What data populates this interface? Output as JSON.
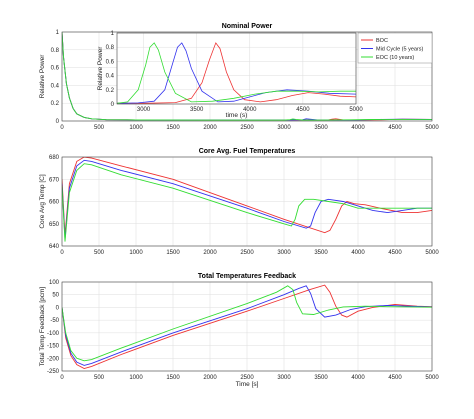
{
  "colors": {
    "BOC": "#ee3333",
    "MID": "#3333ee",
    "EOC": "#33dd33",
    "grid": "#dddddd",
    "axis": "#444444"
  },
  "chart_data": [
    {
      "type": "line",
      "title": "Nominal Power",
      "ylabel": "Relative Power",
      "xlabel": "",
      "xlim": [
        0,
        5000
      ],
      "ylim": [
        0,
        1
      ],
      "xticks": [
        "0",
        "500",
        "1000",
        "1500",
        "2000",
        "2500",
        "3000",
        "3500",
        "4000",
        "4500",
        "5000"
      ],
      "yticks": [
        "0",
        "0.2",
        "0.4",
        "0.6",
        "0.8",
        "1"
      ],
      "grid": true,
      "series": [
        {
          "name": "BOC",
          "key": "BOC",
          "x": [
            0,
            20,
            60,
            100,
            150,
            200,
            300,
            400,
            600,
            1000,
            2000,
            3000,
            3600,
            3650,
            3700,
            3800,
            4000,
            4300,
            4600,
            5000
          ],
          "y": [
            1,
            0.72,
            0.42,
            0.26,
            0.14,
            0.08,
            0.04,
            0.025,
            0.015,
            0.012,
            0.01,
            0.01,
            0.012,
            0.02,
            0.025,
            0.012,
            0.01,
            0.013,
            0.02,
            0.018
          ]
        },
        {
          "name": "Mid Cycle (5 years)",
          "key": "MID",
          "x": [
            0,
            20,
            60,
            100,
            150,
            200,
            300,
            400,
            600,
            1000,
            2000,
            3000,
            3250,
            3300,
            3350,
            3450,
            3700,
            4000,
            4300,
            4600,
            5000
          ],
          "y": [
            1,
            0.72,
            0.42,
            0.26,
            0.14,
            0.08,
            0.04,
            0.025,
            0.015,
            0.012,
            0.01,
            0.01,
            0.013,
            0.025,
            0.02,
            0.012,
            0.01,
            0.012,
            0.018,
            0.02,
            0.017
          ]
        },
        {
          "name": "EOC (10 years)",
          "key": "EOC",
          "x": [
            0,
            20,
            60,
            100,
            150,
            200,
            300,
            400,
            600,
            1000,
            2000,
            3000,
            3080,
            3120,
            3160,
            3250,
            3500,
            3900,
            4200,
            4600,
            5000
          ],
          "y": [
            1,
            0.72,
            0.42,
            0.26,
            0.14,
            0.08,
            0.04,
            0.025,
            0.015,
            0.012,
            0.01,
            0.01,
            0.015,
            0.022,
            0.018,
            0.011,
            0.01,
            0.013,
            0.017,
            0.018,
            0.016
          ]
        }
      ]
    },
    {
      "type": "line",
      "title": "",
      "ylabel": "Relative Power",
      "xlabel": "time (s)",
      "xlim": [
        2750,
        5000
      ],
      "ylim": [
        0,
        1
      ],
      "xticks": [
        "3000",
        "3500",
        "4000",
        "4500",
        "5000"
      ],
      "yticks": [
        "0",
        "0.2",
        "0.4",
        "0.6",
        "0.8",
        "1"
      ],
      "grid": true,
      "series": [
        {
          "name": "BOC",
          "key": "BOC",
          "x": [
            2750,
            3000,
            3300,
            3450,
            3550,
            3620,
            3680,
            3720,
            3780,
            3850,
            3950,
            4100,
            4250,
            4400,
            4550,
            4700,
            4850,
            5000
          ],
          "y": [
            0.01,
            0.01,
            0.02,
            0.08,
            0.3,
            0.62,
            0.86,
            0.78,
            0.45,
            0.2,
            0.06,
            0.03,
            0.06,
            0.12,
            0.16,
            0.14,
            0.11,
            0.1
          ]
        },
        {
          "name": "Mid Cycle (5 years)",
          "key": "MID",
          "x": [
            2750,
            2950,
            3100,
            3200,
            3270,
            3320,
            3360,
            3400,
            3450,
            3550,
            3700,
            3850,
            4000,
            4150,
            4350,
            4550,
            4750,
            5000
          ],
          "y": [
            0.01,
            0.015,
            0.04,
            0.2,
            0.55,
            0.8,
            0.86,
            0.75,
            0.5,
            0.18,
            0.03,
            0.04,
            0.1,
            0.16,
            0.2,
            0.18,
            0.15,
            0.14
          ]
        },
        {
          "name": "EOC (10 years)",
          "key": "EOC",
          "x": [
            2750,
            2850,
            2950,
            3020,
            3060,
            3100,
            3140,
            3200,
            3300,
            3450,
            3650,
            3850,
            4050,
            4250,
            4450,
            4650,
            4850,
            5000
          ],
          "y": [
            0.01,
            0.03,
            0.2,
            0.55,
            0.8,
            0.86,
            0.76,
            0.45,
            0.15,
            0.03,
            0.04,
            0.08,
            0.14,
            0.18,
            0.18,
            0.17,
            0.18,
            0.18
          ]
        }
      ]
    },
    {
      "type": "line",
      "title": "Core Avg. Fuel Temperatures",
      "ylabel": "Core Avg Temp [C]",
      "xlabel": "",
      "xlim": [
        0,
        5000
      ],
      "ylim": [
        640,
        680
      ],
      "xticks": [
        "0",
        "500",
        "1000",
        "1500",
        "2000",
        "2500",
        "3000",
        "3500",
        "4000",
        "4500",
        "5000"
      ],
      "yticks": [
        "640",
        "650",
        "660",
        "670",
        "680"
      ],
      "grid": true,
      "series": [
        {
          "name": "BOC",
          "key": "BOC",
          "x": [
            0,
            40,
            100,
            200,
            300,
            400,
            800,
            1500,
            2500,
            3000,
            3550,
            3620,
            3700,
            3780,
            3850,
            3950,
            4100,
            4300,
            4600,
            4800,
            5000
          ],
          "y": [
            670,
            645,
            668,
            678,
            680,
            679.5,
            676,
            670,
            658,
            652,
            646,
            647,
            652,
            658,
            660,
            659,
            658.5,
            657,
            655,
            655,
            656
          ]
        },
        {
          "name": "Mid Cycle (5 years)",
          "key": "MID",
          "x": [
            0,
            40,
            100,
            200,
            300,
            400,
            800,
            1500,
            2500,
            3000,
            3300,
            3360,
            3420,
            3500,
            3600,
            3800,
            4000,
            4200,
            4400,
            4600,
            4800,
            5000
          ],
          "y": [
            668,
            643,
            666,
            676,
            678.5,
            678,
            674,
            668,
            657,
            651,
            648,
            649,
            655,
            660,
            661,
            660,
            658,
            656,
            655,
            656,
            657,
            657
          ]
        },
        {
          "name": "EOC (10 years)",
          "key": "EOC",
          "x": [
            0,
            40,
            100,
            200,
            300,
            400,
            800,
            1500,
            2500,
            3000,
            3100,
            3150,
            3200,
            3280,
            3400,
            3600,
            3800,
            4000,
            4300,
            4600,
            5000
          ],
          "y": [
            667,
            642,
            664,
            674,
            677,
            676.5,
            672,
            666,
            655,
            650,
            649,
            652,
            658,
            661,
            661,
            660,
            659,
            657,
            657,
            657,
            657
          ]
        }
      ]
    },
    {
      "type": "line",
      "title": "Total Temperatures Feedback",
      "ylabel": "Total Temp Feedback [pcm]",
      "xlabel": "Time [s]",
      "xlim": [
        0,
        5000
      ],
      "ylim": [
        -250,
        100
      ],
      "xticks": [
        "0",
        "500",
        "1000",
        "1500",
        "2000",
        "2500",
        "3000",
        "3500",
        "4000",
        "4500",
        "5000"
      ],
      "yticks": [
        "-250",
        "-200",
        "-150",
        "-100",
        "-50",
        "0",
        "50",
        "100"
      ],
      "grid": true,
      "series": [
        {
          "name": "BOC",
          "key": "BOC",
          "x": [
            0,
            50,
            120,
            200,
            300,
            400,
            800,
            1500,
            2500,
            3000,
            3350,
            3550,
            3620,
            3700,
            3780,
            3850,
            4000,
            4200,
            4500,
            4800,
            5000
          ],
          "y": [
            0,
            -120,
            -190,
            -225,
            -240,
            -232,
            -185,
            -110,
            -15,
            35,
            70,
            88,
            60,
            5,
            -30,
            -38,
            -15,
            0,
            12,
            5,
            3
          ]
        },
        {
          "name": "Mid Cycle (5 years)",
          "key": "MID",
          "x": [
            0,
            50,
            120,
            200,
            300,
            400,
            800,
            1500,
            2500,
            3000,
            3200,
            3300,
            3360,
            3430,
            3550,
            3700,
            3900,
            4100,
            4400,
            4700,
            5000
          ],
          "y": [
            0,
            -110,
            -180,
            -215,
            -228,
            -220,
            -175,
            -100,
            -5,
            50,
            75,
            85,
            55,
            -5,
            -38,
            -30,
            -8,
            3,
            8,
            5,
            2
          ]
        },
        {
          "name": "EOC (10 years)",
          "key": "EOC",
          "x": [
            0,
            50,
            120,
            200,
            300,
            400,
            800,
            1500,
            2500,
            2900,
            3050,
            3120,
            3170,
            3250,
            3400,
            3600,
            3800,
            4100,
            4400,
            4700,
            5000
          ],
          "y": [
            0,
            -100,
            -170,
            -200,
            -210,
            -205,
            -160,
            -85,
            15,
            60,
            85,
            70,
            20,
            -25,
            -28,
            -10,
            2,
            5,
            3,
            2,
            1
          ]
        }
      ]
    }
  ]
}
